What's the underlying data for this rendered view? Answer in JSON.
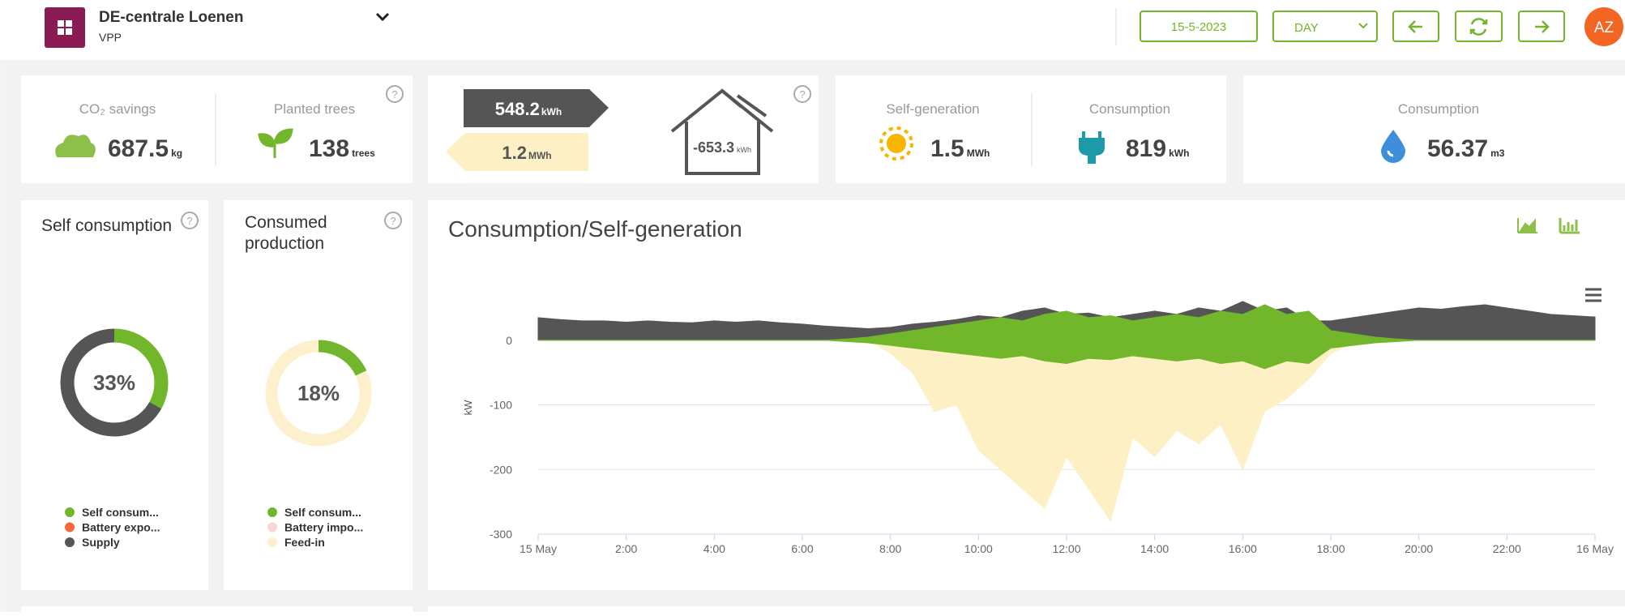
{
  "header": {
    "title": "DE-centrale Loenen",
    "subtitle": "VPP",
    "date": "15-5-2023",
    "period": "DAY",
    "avatar": "AZ"
  },
  "kpi": {
    "co2": {
      "label": "CO₂ savings",
      "value": 687.5,
      "unit": "kg"
    },
    "trees": {
      "label": "Planted trees",
      "value": 138,
      "unit": "trees"
    },
    "energy": {
      "export": 548.2,
      "export_unit": "kWh",
      "import": 1.2,
      "import_unit": "MWh",
      "net": -653.3,
      "net_unit": "kWh"
    },
    "self_generation": {
      "label": "Self-generation",
      "value": 1.5,
      "unit": "MWh"
    },
    "consumption": {
      "label": "Consumption",
      "value": 819,
      "unit": "kWh"
    },
    "water": {
      "label": "Consumption",
      "value": 56.37,
      "unit": "m3"
    }
  },
  "chart_data": [
    {
      "type": "donut",
      "title": "Self consumption",
      "categories": [
        "Self consum...",
        "Battery expo...",
        "Supply"
      ],
      "values": [
        33,
        0,
        67
      ],
      "colors": [
        "#72b62b",
        "#f26a3a",
        "#555555"
      ],
      "center_label": "33%"
    },
    {
      "type": "donut",
      "title": "Consumed production",
      "categories": [
        "Self consum...",
        "Battery impo...",
        "Feed-in"
      ],
      "values": [
        18,
        0,
        82
      ],
      "colors": [
        "#72b62b",
        "#f8d7d3",
        "#fdf0cc"
      ],
      "center_label": "18%"
    },
    {
      "type": "area",
      "title": "Consumption/Self-generation",
      "y_label": "kW",
      "x": [
        0,
        0.5,
        1,
        1.5,
        2,
        2.5,
        3,
        3.5,
        4,
        4.5,
        5,
        5.5,
        6,
        6.5,
        7,
        7.5,
        8,
        8.5,
        9,
        9.5,
        10,
        10.5,
        11,
        11.5,
        12,
        12.5,
        13,
        13.5,
        14,
        14.5,
        15,
        15.5,
        16,
        16.5,
        17,
        17.5,
        18,
        18.5,
        19,
        19.5,
        20,
        20.5,
        21,
        21.5,
        22,
        22.5,
        23,
        23.5,
        24
      ],
      "xlim": [
        0,
        24
      ],
      "xticks": [
        {
          "value": 0,
          "label": "15 May"
        },
        {
          "value": 2,
          "label": "2:00"
        },
        {
          "value": 4,
          "label": "4:00"
        },
        {
          "value": 6,
          "label": "6:00"
        },
        {
          "value": 8,
          "label": "8:00"
        },
        {
          "value": 10,
          "label": "10:00"
        },
        {
          "value": 12,
          "label": "12:00"
        },
        {
          "value": 14,
          "label": "14:00"
        },
        {
          "value": 16,
          "label": "16:00"
        },
        {
          "value": 18,
          "label": "18:00"
        },
        {
          "value": 20,
          "label": "20:00"
        },
        {
          "value": 22,
          "label": "22:00"
        },
        {
          "value": 24,
          "label": "16 May"
        }
      ],
      "ylim": [
        -300,
        75
      ],
      "yticks": [
        0,
        -100,
        -200,
        -300
      ],
      "grid": true,
      "series": [
        {
          "color": "#fdf0c4",
          "values": [
            0,
            0,
            0,
            0,
            0,
            0,
            0,
            0,
            0,
            0,
            0,
            0,
            0,
            0,
            0,
            0,
            -20,
            -50,
            -110,
            -100,
            -170,
            -200,
            -230,
            -260,
            -180,
            -230,
            -280,
            -150,
            -180,
            -140,
            -160,
            -130,
            -200,
            -110,
            -90,
            -60,
            -20,
            -5,
            0,
            0,
            0,
            0,
            0,
            0,
            0,
            0,
            0,
            0,
            0
          ]
        },
        {
          "color": "#555555",
          "values": [
            35,
            32,
            30,
            30,
            28,
            30,
            28,
            27,
            30,
            28,
            30,
            27,
            25,
            22,
            20,
            18,
            20,
            25,
            28,
            32,
            38,
            35,
            45,
            50,
            40,
            42,
            35,
            40,
            45,
            40,
            50,
            45,
            60,
            45,
            50,
            30,
            30,
            35,
            40,
            45,
            50,
            48,
            52,
            55,
            50,
            45,
            40,
            38,
            36
          ]
        },
        {
          "color": "#72b62b",
          "values": [
            0,
            0,
            0,
            0,
            0,
            0,
            0,
            0,
            0,
            0,
            0,
            0,
            0,
            0,
            2,
            5,
            10,
            15,
            20,
            25,
            30,
            35,
            30,
            40,
            45,
            35,
            38,
            30,
            35,
            40,
            35,
            45,
            40,
            55,
            40,
            45,
            15,
            10,
            5,
            2,
            0,
            0,
            0,
            0,
            0,
            0,
            0,
            0,
            0
          ]
        },
        {
          "color": "#72b62b",
          "values": [
            0,
            0,
            0,
            0,
            0,
            0,
            0,
            0,
            0,
            0,
            0,
            0,
            0,
            0,
            -2,
            -4,
            -8,
            -12,
            -16,
            -20,
            -24,
            -28,
            -24,
            -32,
            -36,
            -28,
            -30,
            -24,
            -28,
            -32,
            -28,
            -36,
            -32,
            -44,
            -32,
            -36,
            -12,
            -8,
            -4,
            -2,
            0,
            0,
            0,
            0,
            0,
            0,
            0,
            0,
            0
          ]
        }
      ]
    }
  ]
}
